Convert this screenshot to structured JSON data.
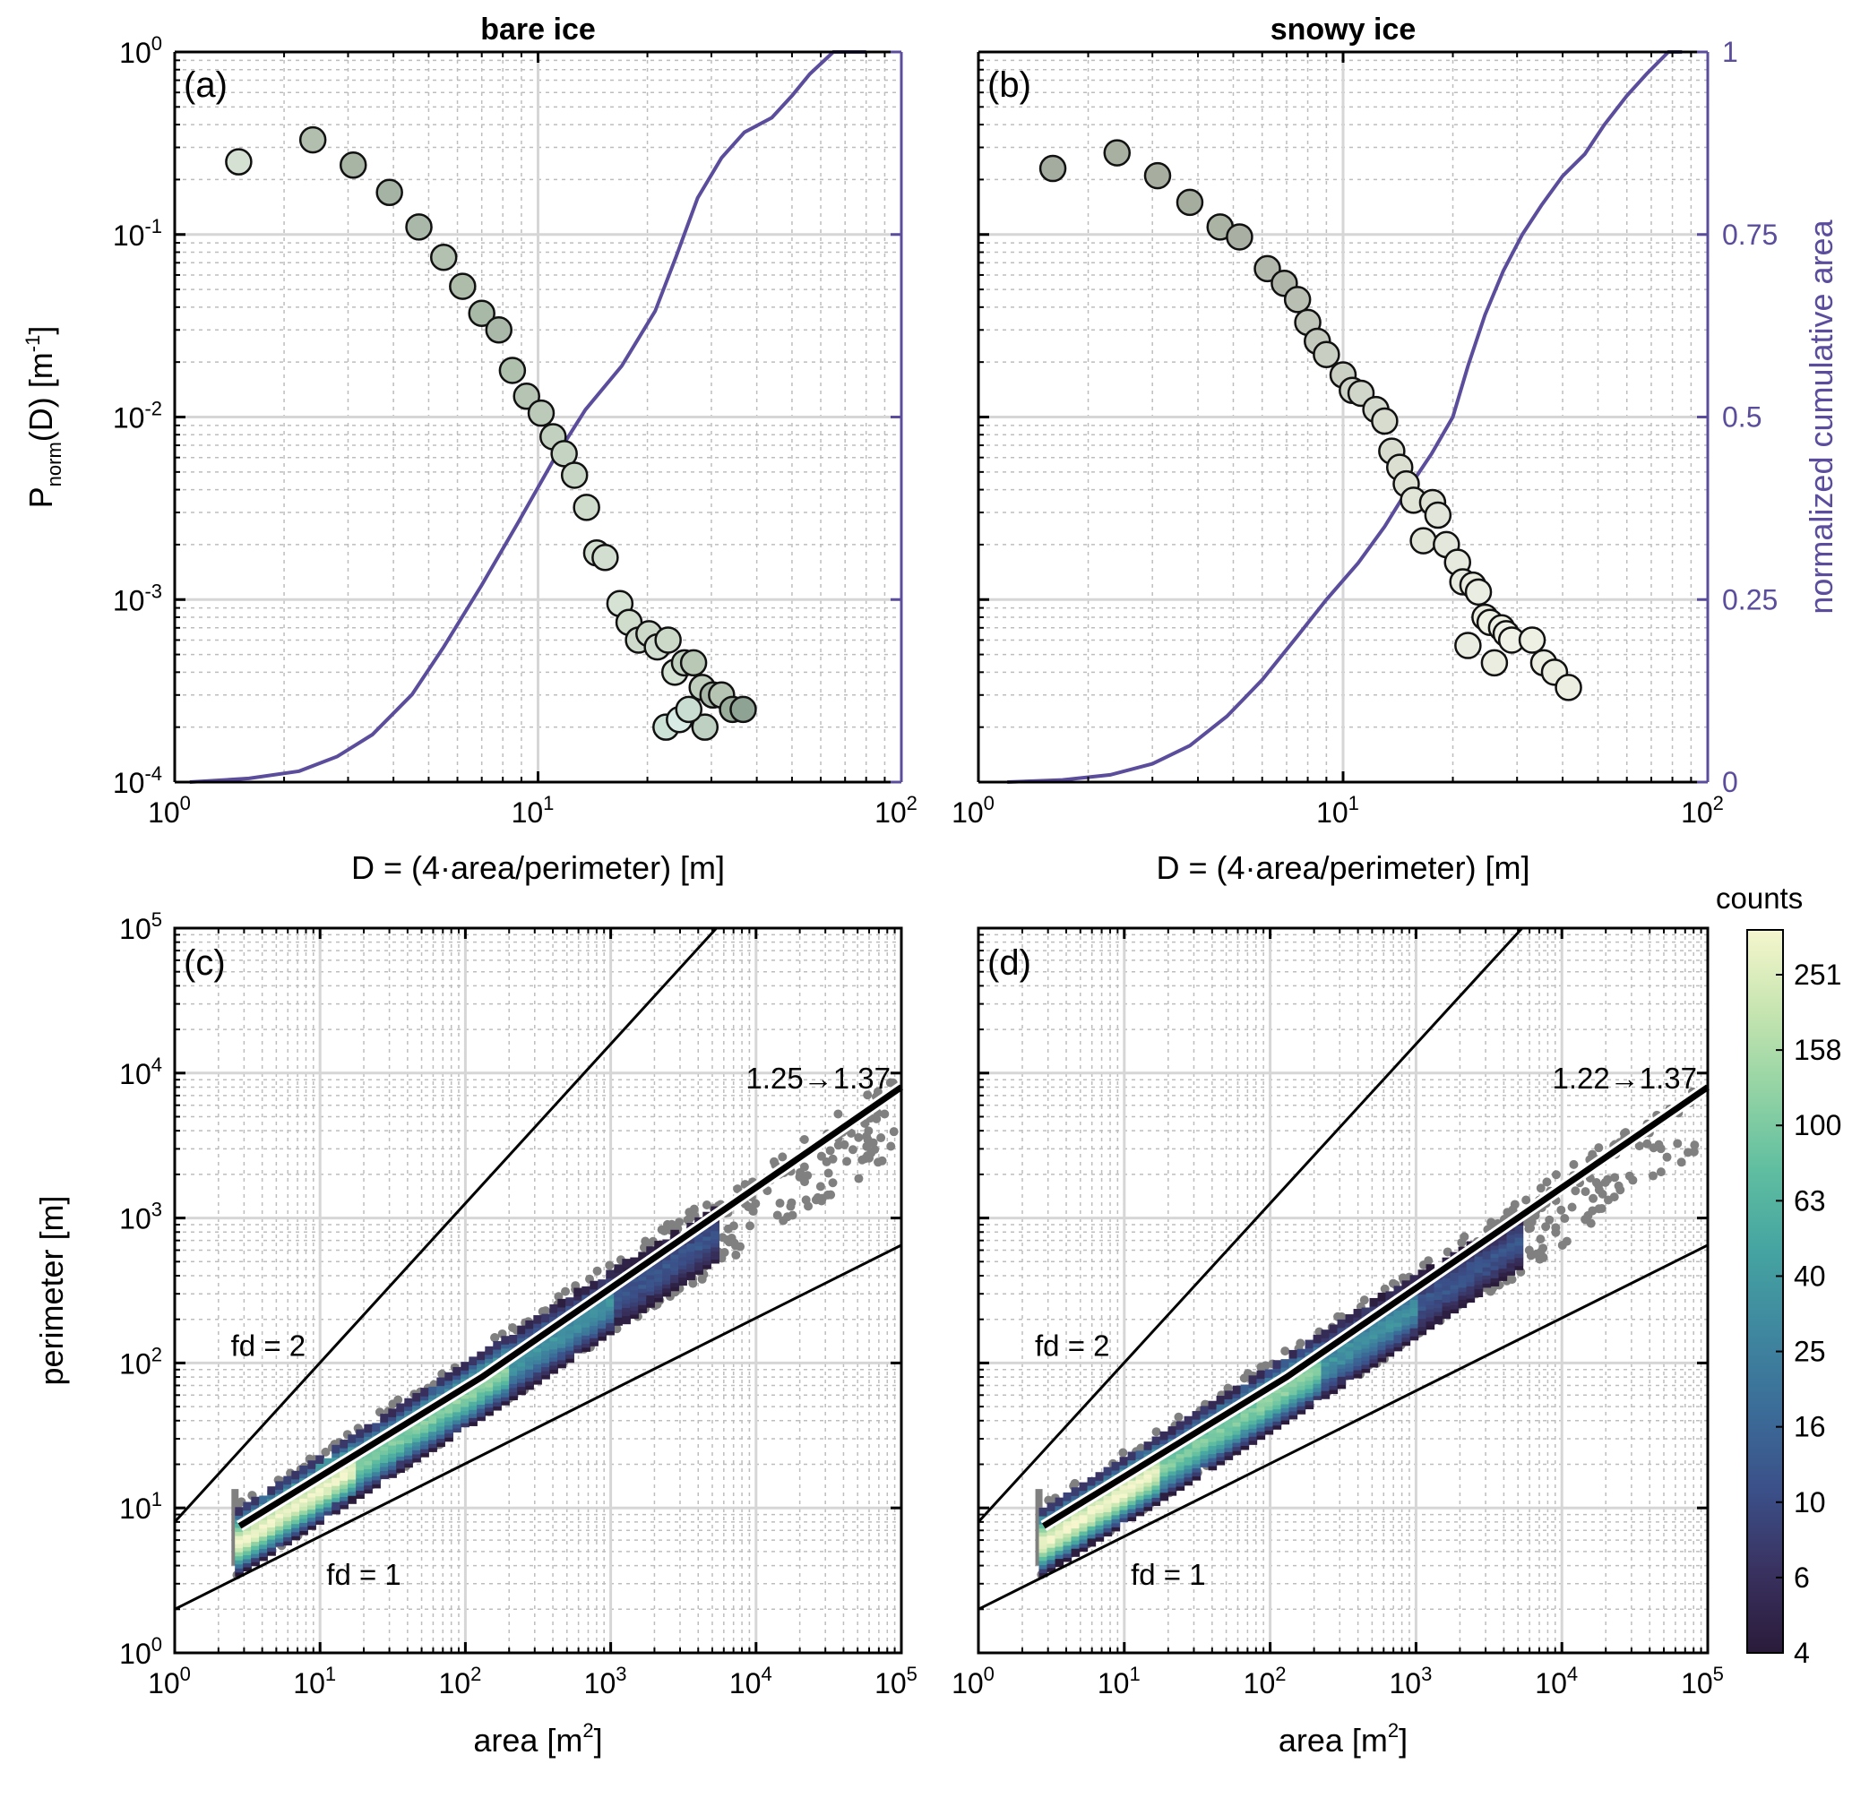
{
  "chart_data": [
    {
      "id": "a",
      "type": "scatter",
      "panel_label": "(a)",
      "title": "bare ice",
      "xlabel": "D = (4·area/perimeter) [m]",
      "ylabel_main": "P",
      "ylabel_sub": "norm",
      "ylabel_tail": "(D) [m",
      "ylabel_exp": "-1",
      "ylabel_end": "]",
      "xscale": "log",
      "yscale": "log",
      "xlim": [
        1,
        100
      ],
      "ylim": [
        0.0001,
        1
      ],
      "xticks": [
        "10",
        "10",
        "10"
      ],
      "xtick_exps": [
        "0",
        "1",
        "2"
      ],
      "yticks": [
        "10",
        "10",
        "10",
        "10",
        "10"
      ],
      "ytick_exps": [
        "-4",
        "-3",
        "-2",
        "-1",
        "0"
      ],
      "right_axis": {
        "label": "normalized cumulative area",
        "ticks": [
          "0",
          "0.25",
          "0.5",
          "0.75",
          "1"
        ],
        "ylim": [
          0,
          1
        ],
        "color": "#5b4d9c"
      },
      "points": {
        "x": [
          1.5,
          2.4,
          3.1,
          3.9,
          4.7,
          5.5,
          6.2,
          7.0,
          7.8,
          8.5,
          9.3,
          10.2,
          11.0,
          11.8,
          12.6,
          13.6,
          14.5,
          15.3,
          16.8,
          17.8,
          18.9,
          20.2,
          21.3,
          22.8,
          23.8,
          25.3,
          26.8,
          28.3,
          30.3,
          32.0,
          34.3,
          36.7,
          22.5,
          28.8,
          24.5,
          26.0
        ],
        "y": [
          0.25,
          0.33,
          0.24,
          0.17,
          0.11,
          0.075,
          0.052,
          0.037,
          0.03,
          0.018,
          0.013,
          0.0105,
          0.0078,
          0.0063,
          0.0048,
          0.0032,
          0.0018,
          0.0017,
          0.00095,
          0.00075,
          0.0006,
          0.00065,
          0.00055,
          0.0006,
          0.0004,
          0.00045,
          0.00045,
          0.00033,
          0.0003,
          0.0003,
          0.00025,
          0.00025,
          0.0002,
          0.0002,
          0.00022,
          0.00025
        ],
        "fill": [
          "#d5e1d3",
          "#b2bfaf",
          "#a8b5a5",
          "#a4b3a4",
          "#a9b8a8",
          "#b2c1b0",
          "#aebcaa",
          "#a8b9a8",
          "#a9b8a8",
          "#afc0ad",
          "#b5c4b3",
          "#bccbb9",
          "#c2d1bf",
          "#c5d3c2",
          "#c7d6c5",
          "#cfdccc",
          "#d2decf",
          "#d2decf",
          "#d6e2d3",
          "#d0ddcd",
          "#cddacc",
          "#ccd9c9",
          "#d1ddce",
          "#ccd9c9",
          "#d5e3d5",
          "#c2d2c0",
          "#b8c8b5",
          "#c0cfbd",
          "#a8b7a8",
          "#b6c5b3",
          "#9aad9b",
          "#8fa394",
          "#cde2d6",
          "#bdd0c1",
          "#d8ebe4",
          "#c9ddd2"
        ]
      },
      "cumulative_line": {
        "x": [
          1.1,
          1.6,
          2.2,
          2.8,
          3.5,
          4.5,
          5.5,
          7.0,
          8.8,
          11.0,
          13.5,
          17.0,
          21.0,
          24.0,
          27.5,
          32.0,
          37.0,
          44.0,
          50.0,
          56.0,
          65.0,
          72.0,
          80.0
        ],
        "y": [
          0.0,
          0.005,
          0.015,
          0.035,
          0.065,
          0.12,
          0.185,
          0.27,
          0.355,
          0.44,
          0.51,
          0.57,
          0.645,
          0.72,
          0.8,
          0.855,
          0.89,
          0.91,
          0.94,
          0.97,
          1.01,
          1.05,
          1.0
        ]
      }
    },
    {
      "id": "b",
      "type": "scatter",
      "panel_label": "(b)",
      "title": "snowy ice",
      "xlabel": "D = (4·area/perimeter) [m]",
      "xscale": "log",
      "yscale": "log",
      "xlim": [
        1,
        100
      ],
      "ylim": [
        0.0001,
        1
      ],
      "xticks": [
        "10",
        "10",
        "10"
      ],
      "xtick_exps": [
        "0",
        "1",
        "2"
      ],
      "points": {
        "x": [
          1.6,
          2.4,
          3.1,
          3.8,
          4.6,
          5.2,
          6.2,
          6.9,
          7.5,
          8.0,
          8.5,
          9.0,
          10.0,
          10.6,
          11.2,
          12.3,
          13.0,
          13.6,
          14.3,
          14.9,
          15.6,
          16.6,
          17.6,
          18.2,
          19.2,
          20.6,
          21.3,
          22.7,
          23.5,
          24.5,
          25.3,
          27.2,
          28.0,
          29.0,
          33.0,
          35.5,
          38.0,
          41.5,
          22.0,
          26.0
        ],
        "y": [
          0.23,
          0.28,
          0.21,
          0.15,
          0.11,
          0.097,
          0.065,
          0.054,
          0.044,
          0.033,
          0.026,
          0.022,
          0.017,
          0.014,
          0.0135,
          0.011,
          0.0095,
          0.0065,
          0.0053,
          0.0043,
          0.0035,
          0.0021,
          0.0034,
          0.0029,
          0.002,
          0.0016,
          0.00125,
          0.0012,
          0.0011,
          0.0008,
          0.00075,
          0.0007,
          0.00065,
          0.0006,
          0.0006,
          0.00045,
          0.0004,
          0.00033,
          0.00056,
          0.00045
        ],
        "fill": [
          "#a4aca0",
          "#a8b0a2",
          "#a7ae9f",
          "#a5ad9f",
          "#abb3a5",
          "#a9b0a3",
          "#b2b8ac",
          "#afb6a9",
          "#b9bfb3",
          "#bfc5b9",
          "#c3c9bd",
          "#c8cec1",
          "#cad0c3",
          "#cfd5c8",
          "#d0d6c9",
          "#d3d9cc",
          "#d7dccf",
          "#d8ddd0",
          "#dadfd2",
          "#dde2d5",
          "#e1e5d8",
          "#e1e5d8",
          "#dde2d5",
          "#e2e6da",
          "#e4e8dc",
          "#e6e9dd",
          "#e8ebdf",
          "#e9ecdf",
          "#eaede1",
          "#eceee2",
          "#eff1e5",
          "#eef0e4",
          "#f0f2e7",
          "#f0f2e7",
          "#eef0e4",
          "#eceee2",
          "#ebede1",
          "#eceee2",
          "#e9ece0",
          "#ebede1"
        ]
      },
      "cumulative_line": {
        "x": [
          1.2,
          1.7,
          2.3,
          3.0,
          3.8,
          4.8,
          6.0,
          7.5,
          9.0,
          11.0,
          13.0,
          15.0,
          17.5,
          20.0,
          22.0,
          24.5,
          27.5,
          31.0,
          35.0,
          40.0,
          46.0,
          52.0,
          60.0,
          68.0,
          78.0,
          85.0
        ],
        "y": [
          0.0,
          0.003,
          0.01,
          0.025,
          0.05,
          0.09,
          0.14,
          0.2,
          0.25,
          0.3,
          0.35,
          0.4,
          0.45,
          0.5,
          0.57,
          0.64,
          0.7,
          0.75,
          0.79,
          0.83,
          0.86,
          0.9,
          0.94,
          0.97,
          1.0,
          1.0
        ]
      }
    },
    {
      "id": "c",
      "type": "heatmap",
      "panel_label": "(c)",
      "xlabel": "area [m",
      "xlabel_exp": "2",
      "xlabel_end": "]",
      "ylabel": "perimeter [m]",
      "xscale": "log",
      "yscale": "log",
      "xlim": [
        1,
        100000
      ],
      "ylim": [
        1,
        100000
      ],
      "xticks": [
        "10",
        "10",
        "10",
        "10",
        "10",
        "10"
      ],
      "xtick_exps": [
        "0",
        "1",
        "2",
        "3",
        "4",
        "5"
      ],
      "yticks": [
        "10",
        "10",
        "10",
        "10",
        "10",
        "10"
      ],
      "ytick_exps": [
        "0",
        "1",
        "2",
        "3",
        "4",
        "5"
      ],
      "fit_label": "1.25→1.37",
      "fd2_label": "fd = 2",
      "fd1_label": "fd = 1",
      "fd2_line": {
        "x": [
          1,
          100000
        ],
        "y": [
          8,
          2500000
        ]
      },
      "fd1_line": {
        "x": [
          1,
          100000
        ],
        "y": [
          2,
          650
        ]
      },
      "fit_line": {
        "x": [
          2.8,
          130,
          100000
        ],
        "y": [
          7.5,
          80,
          8000
        ]
      },
      "density_band": {
        "log_intercept": 0.51,
        "slope": 0.645,
        "min_area": 2.6,
        "max_area": 5000
      },
      "outliers": {
        "count": 150,
        "min_area": 2000,
        "max_area": 90000
      }
    },
    {
      "id": "d",
      "type": "heatmap",
      "panel_label": "(d)",
      "xlabel": "area [m",
      "xlabel_exp": "2",
      "xlabel_end": "]",
      "xscale": "log",
      "yscale": "log",
      "xlim": [
        1,
        100000
      ],
      "ylim": [
        1,
        100000
      ],
      "xticks": [
        "10",
        "10",
        "10",
        "10",
        "10",
        "10"
      ],
      "xtick_exps": [
        "0",
        "1",
        "2",
        "3",
        "4",
        "5"
      ],
      "fit_label": "1.22→1.37",
      "fd2_label": "fd = 2",
      "fd1_label": "fd = 1",
      "fd2_line": {
        "x": [
          1,
          100000
        ],
        "y": [
          8,
          2500000
        ]
      },
      "fd1_line": {
        "x": [
          1,
          100000
        ],
        "y": [
          2,
          650
        ]
      },
      "fit_line": {
        "x": [
          2.8,
          130,
          100000
        ],
        "y": [
          7.5,
          80,
          8000
        ]
      },
      "density_band": {
        "log_intercept": 0.51,
        "slope": 0.635,
        "min_area": 2.6,
        "max_area": 5000
      },
      "outliers": {
        "count": 140,
        "min_area": 2000,
        "max_area": 90000
      }
    }
  ],
  "colorbar": {
    "label": "counts",
    "ticks": [
      "4",
      "6",
      "10",
      "16",
      "25",
      "40",
      "63",
      "100",
      "158",
      "251"
    ],
    "stops": [
      "#2a1b3a",
      "#39315f",
      "#3b4f88",
      "#3b6c98",
      "#3f879f",
      "#45a4a1",
      "#5fbea0",
      "#93d3a4",
      "#c7e5b0",
      "#f5f6cd"
    ]
  }
}
